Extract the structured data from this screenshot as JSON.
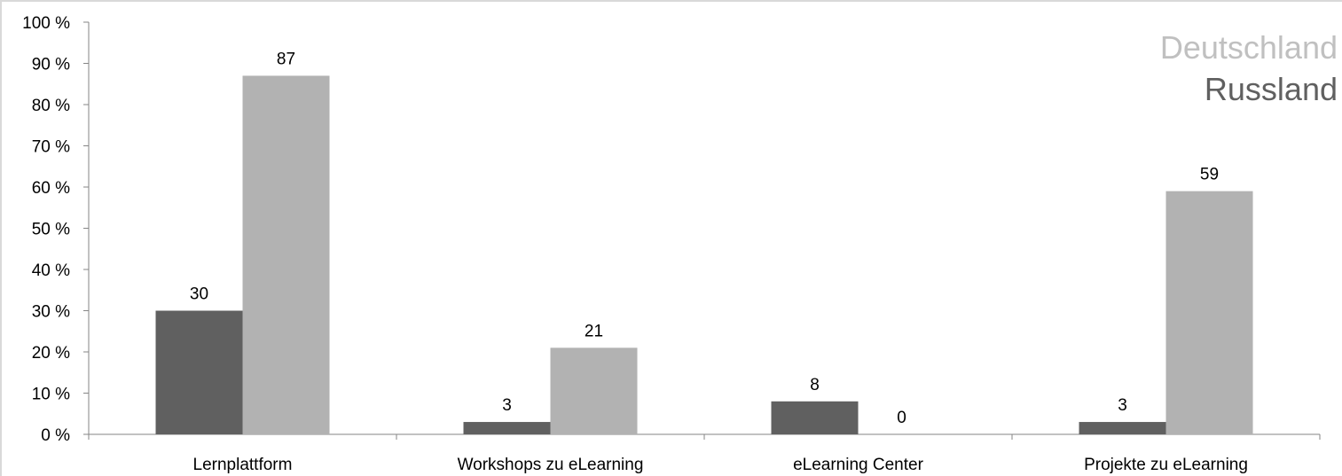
{
  "chart_data": {
    "type": "bar",
    "categories": [
      "Lernplattform",
      "Workshops zu eLearning",
      "eLearning Center",
      "Projekte zu eLearning"
    ],
    "series": [
      {
        "name": "Russland",
        "values": [
          30,
          3,
          8,
          3
        ],
        "color": "#606060"
      },
      {
        "name": "Deutschland",
        "values": [
          87,
          21,
          0,
          59
        ],
        "color": "#b2b2b2"
      }
    ],
    "yticks": [
      "0 %",
      "10 %",
      "20 %",
      "30 %",
      "40 %",
      "50 %",
      "60 %",
      "70 %",
      "80 %",
      "90 %",
      "100 %"
    ],
    "ylim": [
      0,
      100
    ],
    "title": "",
    "xlabel": "",
    "ylabel": "",
    "grid": false,
    "legend_position": "top-right",
    "legend_order": [
      "Deutschland",
      "Russland"
    ],
    "legend_colors": {
      "Deutschland": "#c0c0c0",
      "Russland": "#606060"
    }
  }
}
